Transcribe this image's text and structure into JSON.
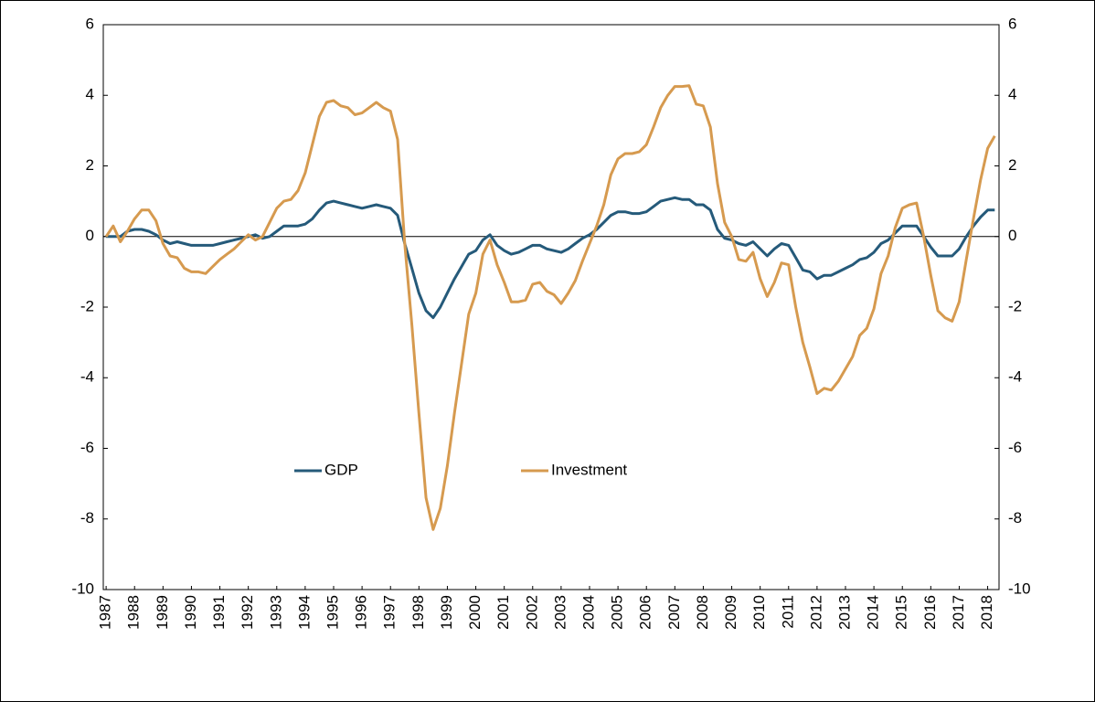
{
  "chart_data": {
    "type": "line",
    "x": [
      1987,
      1987.25,
      1987.5,
      1987.75,
      1988,
      1988.25,
      1988.5,
      1988.75,
      1989,
      1989.25,
      1989.5,
      1989.75,
      1990,
      1990.25,
      1990.5,
      1990.75,
      1991,
      1991.25,
      1991.5,
      1991.75,
      1992,
      1992.25,
      1992.5,
      1992.75,
      1993,
      1993.25,
      1993.5,
      1993.75,
      1994,
      1994.25,
      1994.5,
      1994.75,
      1995,
      1995.25,
      1995.5,
      1995.75,
      1996,
      1996.25,
      1996.5,
      1996.75,
      1997,
      1997.25,
      1997.5,
      1997.75,
      1998,
      1998.25,
      1998.5,
      1998.75,
      1999,
      1999.25,
      1999.5,
      1999.75,
      2000,
      2000.25,
      2000.5,
      2000.75,
      2001,
      2001.25,
      2001.5,
      2001.75,
      2002,
      2002.25,
      2002.5,
      2002.75,
      2003,
      2003.25,
      2003.5,
      2003.75,
      2004,
      2004.25,
      2004.5,
      2004.75,
      2005,
      2005.25,
      2005.5,
      2005.75,
      2006,
      2006.25,
      2006.5,
      2006.75,
      2007,
      2007.25,
      2007.5,
      2007.75,
      2008,
      2008.25,
      2008.5,
      2008.75,
      2009,
      2009.25,
      2009.5,
      2009.75,
      2010,
      2010.25,
      2010.5,
      2010.75,
      2011,
      2011.25,
      2011.5,
      2011.75,
      2012,
      2012.25,
      2012.5,
      2012.75,
      2013,
      2013.25,
      2013.5,
      2013.75,
      2014,
      2014.25,
      2014.5,
      2014.75,
      2015,
      2015.25,
      2015.5,
      2015.75,
      2016,
      2016.25,
      2016.5,
      2016.75,
      2017,
      2017.25,
      2017.5,
      2017.75,
      2018,
      2018.25
    ],
    "series": [
      {
        "name": "GDP",
        "color": "#255a7a",
        "values": [
          0,
          0,
          0,
          0.15,
          0.2,
          0.2,
          0.15,
          0.05,
          -0.1,
          -0.2,
          -0.15,
          -0.2,
          -0.25,
          -0.25,
          -0.25,
          -0.25,
          -0.2,
          -0.15,
          -0.1,
          -0.05,
          0,
          0.05,
          -0.05,
          0,
          0.15,
          0.3,
          0.3,
          0.3,
          0.35,
          0.5,
          0.75,
          0.95,
          1.0,
          0.95,
          0.9,
          0.85,
          0.8,
          0.85,
          0.9,
          0.85,
          0.8,
          0.6,
          -0.2,
          -0.9,
          -1.6,
          -2.1,
          -2.3,
          -2.0,
          -1.6,
          -1.2,
          -0.85,
          -0.5,
          -0.4,
          -0.1,
          0.05,
          -0.25,
          -0.4,
          -0.5,
          -0.45,
          -0.35,
          -0.25,
          -0.25,
          -0.35,
          -0.4,
          -0.45,
          -0.35,
          -0.2,
          -0.05,
          0.05,
          0.2,
          0.4,
          0.6,
          0.7,
          0.7,
          0.65,
          0.65,
          0.7,
          0.85,
          1.0,
          1.05,
          1.1,
          1.05,
          1.05,
          0.9,
          0.9,
          0.75,
          0.2,
          -0.05,
          -0.1,
          -0.2,
          -0.25,
          -0.15,
          -0.35,
          -0.55,
          -0.35,
          -0.2,
          -0.25,
          -0.6,
          -0.95,
          -1.0,
          -1.2,
          -1.1,
          -1.1,
          -1.0,
          -0.9,
          -0.8,
          -0.65,
          -0.6,
          -0.45,
          -0.2,
          -0.1,
          0.1,
          0.3,
          0.3,
          0.3,
          0,
          -0.3,
          -0.55,
          -0.55,
          -0.55,
          -0.35,
          0,
          0.3,
          0.55,
          0.75,
          0.75
        ]
      },
      {
        "name": "Investment",
        "color": "#d69a4f",
        "values": [
          0,
          0.3,
          -0.15,
          0.15,
          0.5,
          0.75,
          0.75,
          0.45,
          -0.2,
          -0.55,
          -0.6,
          -0.9,
          -1.0,
          -1.0,
          -1.05,
          -0.85,
          -0.65,
          -0.5,
          -0.35,
          -0.15,
          0.05,
          -0.1,
          0,
          0.4,
          0.8,
          1.0,
          1.05,
          1.3,
          1.8,
          2.6,
          3.4,
          3.8,
          3.85,
          3.7,
          3.65,
          3.45,
          3.5,
          3.65,
          3.8,
          3.65,
          3.55,
          2.75,
          -0.2,
          -2.5,
          -5.0,
          -7.4,
          -8.3,
          -7.7,
          -6.5,
          -5.0,
          -3.6,
          -2.2,
          -1.6,
          -0.5,
          -0.1,
          -0.8,
          -1.3,
          -1.85,
          -1.85,
          -1.8,
          -1.35,
          -1.3,
          -1.55,
          -1.65,
          -1.9,
          -1.6,
          -1.25,
          -0.7,
          -0.2,
          0.3,
          0.9,
          1.75,
          2.2,
          2.35,
          2.35,
          2.4,
          2.6,
          3.1,
          3.65,
          4.0,
          4.25,
          4.25,
          4.27,
          3.75,
          3.7,
          3.1,
          1.5,
          0.4,
          0,
          -0.65,
          -0.7,
          -0.45,
          -1.2,
          -1.7,
          -1.3,
          -0.75,
          -0.8,
          -2.0,
          -3.0,
          -3.7,
          -4.45,
          -4.3,
          -4.35,
          -4.1,
          -3.75,
          -3.4,
          -2.8,
          -2.6,
          -2.05,
          -1.05,
          -0.55,
          0.25,
          0.8,
          0.9,
          0.95,
          0,
          -1.1,
          -2.1,
          -2.3,
          -2.4,
          -1.85,
          -0.65,
          0.5,
          1.6,
          2.5,
          2.85
        ]
      }
    ],
    "xlim": [
      1986.9,
      2018.4
    ],
    "xticks": [
      1987,
      1988,
      1989,
      1990,
      1991,
      1992,
      1993,
      1994,
      1995,
      1996,
      1997,
      1998,
      1999,
      2000,
      2001,
      2002,
      2003,
      2004,
      2005,
      2006,
      2007,
      2008,
      2009,
      2010,
      2011,
      2012,
      2013,
      2014,
      2015,
      2016,
      2017,
      2018
    ],
    "ylim": [
      -10,
      6
    ],
    "yticks": [
      -10,
      -8,
      -6,
      -4,
      -2,
      0,
      2,
      4,
      6
    ],
    "y2lim": [
      -10,
      6
    ],
    "y2ticks": [
      -10,
      -8,
      -6,
      -4,
      -2,
      0,
      2,
      4,
      6
    ],
    "legend": "center"
  }
}
